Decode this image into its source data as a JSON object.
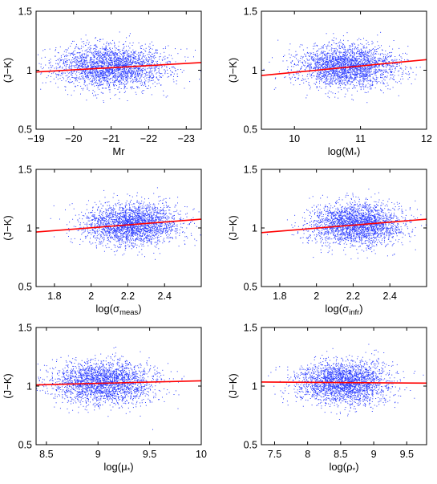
{
  "chart_data": [
    {
      "type": "scatter",
      "xlabel": "Mr",
      "ylabel": "(J−K)",
      "xlim": [
        -19,
        -23.4
      ],
      "x_reversed": true,
      "ylim": [
        0.5,
        1.5
      ],
      "xticks": [
        "−19",
        "−20",
        "−21",
        "−22",
        "−23"
      ],
      "xtick_values": [
        -19,
        -20,
        -21,
        -22,
        -23
      ],
      "yticks": [
        "0.5",
        "1",
        "1.5"
      ],
      "ytick_values": [
        0.5,
        1,
        1.5
      ],
      "grid": false,
      "points": {
        "count": 2500,
        "x_center": -21.0,
        "x_spread": 0.75,
        "y_center": 1.03,
        "y_spread": 0.09
      },
      "fit_line": {
        "x": [
          -19,
          -23.4
        ],
        "y": [
          0.985,
          1.065
        ],
        "color": "#ff0000"
      }
    },
    {
      "type": "scatter",
      "xlabel_main": "log(M",
      "xlabel_sub": "*",
      "xlabel_end": ")",
      "ylabel": "(J−K)",
      "xlim": [
        9.5,
        12
      ],
      "ylim": [
        0.5,
        1.5
      ],
      "xticks": [
        "10",
        "11",
        "12"
      ],
      "xtick_values": [
        10,
        11,
        12
      ],
      "yticks": [
        "0.5",
        "1",
        "1.5"
      ],
      "ytick_values": [
        0.5,
        1,
        1.5
      ],
      "grid": false,
      "points": {
        "count": 2500,
        "x_center": 10.8,
        "x_spread": 0.38,
        "y_center": 1.03,
        "y_spread": 0.09
      },
      "fit_line": {
        "x": [
          9.5,
          12
        ],
        "y": [
          0.955,
          1.09
        ],
        "color": "#ff0000"
      }
    },
    {
      "type": "scatter",
      "xlabel_main": "log(σ",
      "xlabel_sub": "meas",
      "xlabel_end": ")",
      "ylabel": "(J−K)",
      "xlim": [
        1.7,
        2.6
      ],
      "ylim": [
        0.5,
        1.5
      ],
      "xticks": [
        "1.8",
        "2",
        "2.2",
        "2.4"
      ],
      "xtick_values": [
        1.8,
        2.0,
        2.2,
        2.4
      ],
      "yticks": [
        "0.5",
        "1",
        "1.5"
      ],
      "ytick_values": [
        0.5,
        1,
        1.5
      ],
      "grid": false,
      "points": {
        "count": 2500,
        "x_center": 2.22,
        "x_spread": 0.13,
        "y_center": 1.03,
        "y_spread": 0.09
      },
      "fit_line": {
        "x": [
          1.7,
          2.6
        ],
        "y": [
          0.965,
          1.075
        ],
        "color": "#ff0000"
      }
    },
    {
      "type": "scatter",
      "xlabel_main": "log(σ",
      "xlabel_sub": "infr",
      "xlabel_end": ")",
      "ylabel": "(J−K)",
      "xlim": [
        1.7,
        2.6
      ],
      "ylim": [
        0.5,
        1.5
      ],
      "xticks": [
        "1.8",
        "2",
        "2.2",
        "2.4"
      ],
      "xtick_values": [
        1.8,
        2.0,
        2.2,
        2.4
      ],
      "yticks": [
        "0.5",
        "1",
        "1.5"
      ],
      "ytick_values": [
        0.5,
        1,
        1.5
      ],
      "grid": false,
      "points": {
        "count": 2500,
        "x_center": 2.22,
        "x_spread": 0.13,
        "y_center": 1.03,
        "y_spread": 0.09
      },
      "fit_line": {
        "x": [
          1.7,
          2.6
        ],
        "y": [
          0.96,
          1.075
        ],
        "color": "#ff0000"
      }
    },
    {
      "type": "scatter",
      "xlabel_main": "log(μ",
      "xlabel_sub": "*",
      "xlabel_end": ")",
      "ylabel": "(J−K)",
      "xlim": [
        8.4,
        10
      ],
      "ylim": [
        0.5,
        1.5
      ],
      "xticks": [
        "8.5",
        "9",
        "9.5",
        "10"
      ],
      "xtick_values": [
        8.5,
        9.0,
        9.5,
        10.0
      ],
      "yticks": [
        "0.5",
        "1",
        "1.5"
      ],
      "ytick_values": [
        0.5,
        1,
        1.5
      ],
      "grid": false,
      "points": {
        "count": 2500,
        "x_center": 9.05,
        "x_spread": 0.25,
        "y_center": 1.03,
        "y_spread": 0.09
      },
      "fit_line": {
        "x": [
          8.4,
          10
        ],
        "y": [
          1.01,
          1.045
        ],
        "color": "#ff0000"
      }
    },
    {
      "type": "scatter",
      "xlabel_main": "log(ρ",
      "xlabel_sub": "*",
      "xlabel_end": ")",
      "ylabel": "(J−K)",
      "xlim": [
        7.3,
        9.8
      ],
      "ylim": [
        0.5,
        1.5
      ],
      "xticks": [
        "7.5",
        "8",
        "8.5",
        "9",
        "9.5"
      ],
      "xtick_values": [
        7.5,
        8.0,
        8.5,
        9.0,
        9.5
      ],
      "yticks": [
        "0.5",
        "1",
        "1.5"
      ],
      "ytick_values": [
        0.5,
        1,
        1.5
      ],
      "grid": false,
      "points": {
        "count": 2500,
        "x_center": 8.55,
        "x_spread": 0.35,
        "y_center": 1.03,
        "y_spread": 0.09
      },
      "fit_line": {
        "x": [
          7.3,
          9.8
        ],
        "y": [
          1.035,
          1.025
        ],
        "color": "#ff0000"
      }
    }
  ],
  "colors": {
    "points": "#2b3cff",
    "fit": "#ff0000",
    "axes": "#000000"
  }
}
